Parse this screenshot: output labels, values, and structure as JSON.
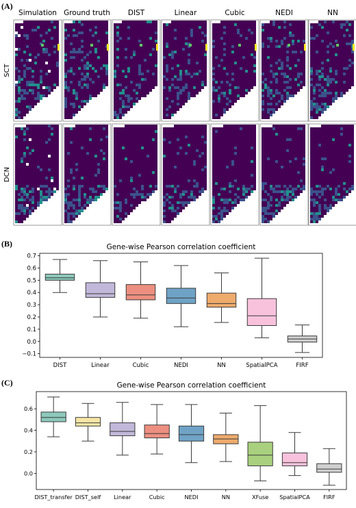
{
  "panel_labels": {
    "a": "(A)",
    "b": "(B)",
    "c": "(C)"
  },
  "spatial_maps": {
    "columns": [
      "Simulation",
      "Ground truth",
      "DIST",
      "Linear",
      "Cubic",
      "NEDI",
      "NN"
    ],
    "rows": [
      "SCT",
      "DCN"
    ],
    "colormap": [
      "#440154",
      "#3b528b",
      "#21918c",
      "#5ec962",
      "#fde725"
    ]
  },
  "chart_data": [
    {
      "type": "box",
      "title": "Gene-wise Pearson correlation coefficient",
      "categories": [
        "DIST",
        "Linear",
        "Cubic",
        "NEDI",
        "NN",
        "SpatialPCA",
        "FIRF"
      ],
      "colors": [
        "#8dc9bb",
        "#c2b8d9",
        "#ec8f80",
        "#6fa3c6",
        "#eeab6c",
        "#f8c2dc",
        "#cfcfcf"
      ],
      "boxes": [
        {
          "whislo": 0.4,
          "q1": 0.5,
          "med": 0.52,
          "q3": 0.55,
          "whishi": 0.67
        },
        {
          "whislo": 0.2,
          "q1": 0.36,
          "med": 0.39,
          "q3": 0.48,
          "whishi": 0.66
        },
        {
          "whislo": 0.19,
          "q1": 0.34,
          "med": 0.38,
          "q3": 0.465,
          "whishi": 0.65
        },
        {
          "whislo": 0.12,
          "q1": 0.31,
          "med": 0.355,
          "q3": 0.435,
          "whishi": 0.62
        },
        {
          "whislo": 0.155,
          "q1": 0.28,
          "med": 0.31,
          "q3": 0.395,
          "whishi": 0.56
        },
        {
          "whislo": 0.03,
          "q1": 0.13,
          "med": 0.21,
          "q3": 0.35,
          "whishi": 0.68
        },
        {
          "whislo": -0.09,
          "q1": -0.005,
          "med": 0.02,
          "q3": 0.045,
          "whishi": 0.135
        }
      ],
      "ylim": [
        -0.13,
        0.72
      ],
      "yticks": [
        -0.1,
        0.0,
        0.1,
        0.2,
        0.3,
        0.4,
        0.5,
        0.6,
        0.7
      ],
      "ytick_labels": [
        "−0.1",
        "0.0",
        "0.1",
        "0.2",
        "0.3",
        "0.4",
        "0.5",
        "0.6",
        "0.7"
      ]
    },
    {
      "type": "box",
      "title": "Gene-wise Pearson correlation coefficient",
      "categories": [
        "DIST_transfer",
        "DIST_self",
        "Linear",
        "Cubic",
        "NEDI",
        "NN",
        "XFuse",
        "SpatialPCA",
        "FIRF"
      ],
      "colors": [
        "#8dc9bb",
        "#f7e6a6",
        "#c2b8d9",
        "#ec8f80",
        "#6fa3c6",
        "#eeab6c",
        "#a9d07e",
        "#f8c2dc",
        "#cfcfcf"
      ],
      "boxes": [
        {
          "whislo": 0.34,
          "q1": 0.48,
          "med": 0.52,
          "q3": 0.57,
          "whishi": 0.71
        },
        {
          "whislo": 0.3,
          "q1": 0.44,
          "med": 0.47,
          "q3": 0.52,
          "whishi": 0.65
        },
        {
          "whislo": 0.17,
          "q1": 0.35,
          "med": 0.39,
          "q3": 0.47,
          "whishi": 0.66
        },
        {
          "whislo": 0.18,
          "q1": 0.33,
          "med": 0.37,
          "q3": 0.45,
          "whishi": 0.64
        },
        {
          "whislo": 0.1,
          "q1": 0.3,
          "med": 0.36,
          "q3": 0.44,
          "whishi": 0.64
        },
        {
          "whislo": 0.11,
          "q1": 0.275,
          "med": 0.32,
          "q3": 0.36,
          "whishi": 0.56
        },
        {
          "whislo": -0.07,
          "q1": 0.07,
          "med": 0.17,
          "q3": 0.29,
          "whishi": 0.63
        },
        {
          "whislo": -0.02,
          "q1": 0.07,
          "med": 0.1,
          "q3": 0.19,
          "whishi": 0.38
        },
        {
          "whislo": -0.11,
          "q1": 0.01,
          "med": 0.04,
          "q3": 0.09,
          "whishi": 0.23
        }
      ],
      "ylim": [
        -0.15,
        0.76
      ],
      "yticks": [
        0.0,
        0.2,
        0.4,
        0.6
      ],
      "ytick_labels": [
        "0.0",
        "0.2",
        "0.4",
        "0.6"
      ]
    }
  ]
}
